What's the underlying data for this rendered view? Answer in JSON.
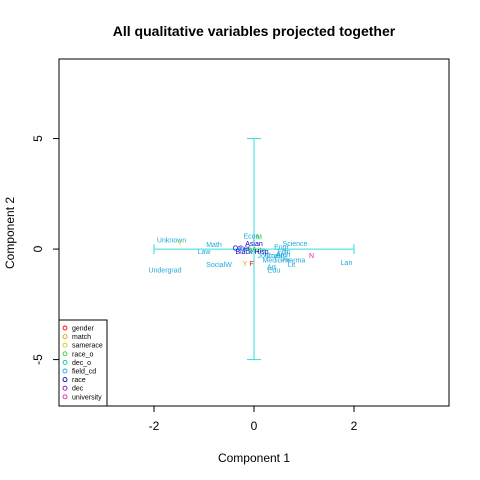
{
  "chart_data": {
    "type": "scatter",
    "title": "All qualitative variables projected together",
    "xlabel": "Component 1",
    "ylabel": "Component 2",
    "xlim": [
      -3.9,
      3.9
    ],
    "ylim": [
      -7.1,
      8.6
    ],
    "xticks": [
      -2,
      0,
      2
    ],
    "yticks": [
      -5,
      0,
      5
    ],
    "grid": false,
    "legend_position": "bottom-left",
    "colors": {
      "gender": "#ff0000",
      "match": "#e6a000",
      "samerace": "#cccc00",
      "race_o": "#33cc33",
      "dec_o": "#00cc99",
      "field_cd": "#22aadd",
      "race": "#0000cc",
      "dec": "#8800cc",
      "university": "#dd22aa",
      "crosshair": "#33dddd"
    },
    "legend": [
      "gender",
      "match",
      "samerace",
      "race_o",
      "dec_o",
      "field_cd",
      "race",
      "dec",
      "university"
    ],
    "crosshair": {
      "x": [
        -2,
        2
      ],
      "y": [
        -5,
        5
      ],
      "center": [
        0,
        0
      ]
    },
    "points": [
      {
        "label": "Unknown",
        "group": "field_cd",
        "x": -1.65,
        "y": 0.4
      },
      {
        "label": "Y",
        "group": "samerace",
        "x": -1.48,
        "y": 0.3
      },
      {
        "label": "Math",
        "group": "field_cd",
        "x": -0.8,
        "y": 0.2
      },
      {
        "label": "Law",
        "group": "field_cd",
        "x": -1.0,
        "y": -0.1
      },
      {
        "label": "Undergrad",
        "group": "field_cd",
        "x": -1.78,
        "y": -0.95
      },
      {
        "label": "SocialW",
        "group": "field_cd",
        "x": -0.7,
        "y": -0.7
      },
      {
        "label": "Econ",
        "group": "field_cd",
        "x": -0.05,
        "y": 0.6
      },
      {
        "label": "M",
        "group": "race_o",
        "x": 0.1,
        "y": 0.55
      },
      {
        "label": "Asian",
        "group": "race",
        "x": 0.0,
        "y": 0.25
      },
      {
        "label": "Other",
        "group": "race",
        "x": -0.25,
        "y": 0.05
      },
      {
        "label": "Black",
        "group": "race",
        "x": -0.2,
        "y": -0.1
      },
      {
        "label": "White",
        "group": "race_o",
        "x": 0.05,
        "y": -0.05
      },
      {
        "label": "Hisp",
        "group": "race",
        "x": 0.15,
        "y": -0.1
      },
      {
        "label": "Y",
        "group": "match",
        "x": -0.18,
        "y": -0.65
      },
      {
        "label": "F",
        "group": "gender",
        "x": -0.05,
        "y": -0.65
      },
      {
        "label": "Science",
        "group": "field_cd",
        "x": 0.82,
        "y": 0.25
      },
      {
        "label": "Engr",
        "group": "field_cd",
        "x": 0.55,
        "y": 0.1
      },
      {
        "label": "Film",
        "group": "field_cd",
        "x": 0.6,
        "y": -0.1
      },
      {
        "label": "Arch",
        "group": "field_cd",
        "x": 0.58,
        "y": -0.25
      },
      {
        "label": "Comm",
        "group": "field_cd",
        "x": 0.45,
        "y": -0.3
      },
      {
        "label": "Journal",
        "group": "field_cd",
        "x": 0.3,
        "y": -0.3
      },
      {
        "label": "Pharma",
        "group": "field_cd",
        "x": 0.78,
        "y": -0.5
      },
      {
        "label": "Medicine",
        "group": "field_cd",
        "x": 0.45,
        "y": -0.5
      },
      {
        "label": "Lit",
        "group": "field_cd",
        "x": 0.75,
        "y": -0.7
      },
      {
        "label": "Art",
        "group": "field_cd",
        "x": 0.35,
        "y": -0.8
      },
      {
        "label": "Edu",
        "group": "field_cd",
        "x": 0.4,
        "y": -0.95
      },
      {
        "label": "N",
        "group": "university",
        "x": 1.15,
        "y": -0.3
      },
      {
        "label": "Lan",
        "group": "field_cd",
        "x": 1.85,
        "y": -0.6
      }
    ]
  }
}
